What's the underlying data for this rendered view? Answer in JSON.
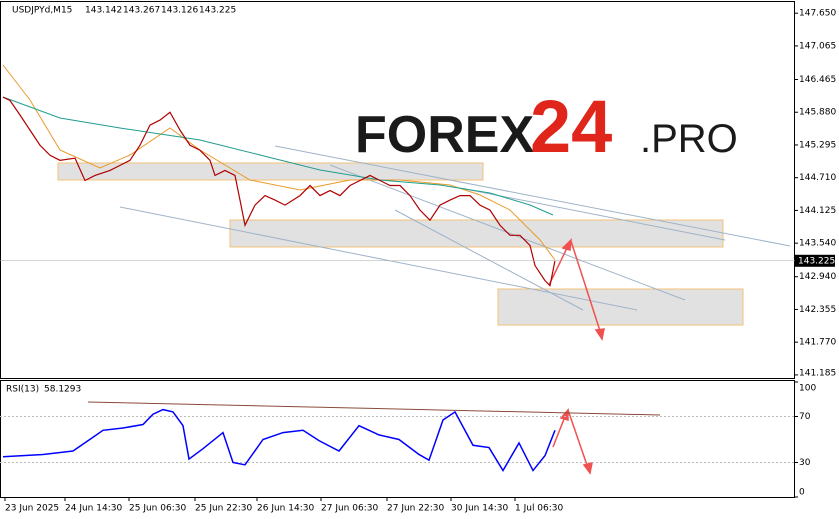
{
  "chart_data": [
    {
      "type": "line",
      "title": "USDJPYd,M15",
      "ohlc": [
        143.142,
        143.267,
        143.126,
        143.225
      ],
      "color": "#b00000",
      "x": [
        0,
        3.5,
        8.5,
        13.5,
        18.5,
        23.5,
        28.5,
        36,
        41,
        46,
        53.5,
        58.5,
        63.5,
        68.5,
        73.5,
        78.5,
        83.5,
        88.5,
        93.5,
        98.5,
        103.5,
        106,
        111,
        116,
        118.5,
        121,
        126,
        131,
        136,
        141,
        148.5,
        153.5,
        158.5,
        163.5,
        168.5,
        173.5,
        178.5,
        183.5,
        188.5,
        193.5,
        198.5,
        203.5,
        208.5,
        213.5,
        218.5,
        223.5,
        228.5,
        233.5,
        238.5,
        243.5,
        248.5,
        253.5,
        258.5,
        263.5,
        266,
        271,
        273.5,
        276
      ],
      "values": [
        146.15,
        146.09,
        145.83,
        145.56,
        145.29,
        145.11,
        145.02,
        145.06,
        144.66,
        144.75,
        144.84,
        144.93,
        145.02,
        145.29,
        145.65,
        145.74,
        145.88,
        145.56,
        145.29,
        145.2,
        145.02,
        144.75,
        144.84,
        144.75,
        144.31,
        143.86,
        144.22,
        144.39,
        144.31,
        144.22,
        144.39,
        144.57,
        144.39,
        144.48,
        144.39,
        144.57,
        144.66,
        144.75,
        144.66,
        144.57,
        144.57,
        144.39,
        144.13,
        143.95,
        144.22,
        144.31,
        144.39,
        144.39,
        144.22,
        144.13,
        143.86,
        143.68,
        143.68,
        143.5,
        143.14,
        142.87,
        142.78,
        143.23
      ],
      "last_price": 143.225,
      "xlim": [
        0,
        396
      ],
      "xticks": [
        {
          "value": 1,
          "label": "23 Jun 2025"
        },
        {
          "value": 31,
          "label": "24 Jun 14:30"
        },
        {
          "value": 63,
          "label": "25 Jun 06:30"
        },
        {
          "value": 96,
          "label": "25 Jun 22:30"
        },
        {
          "value": 127,
          "label": "26 Jun 14:30"
        },
        {
          "value": 159,
          "label": "27 Jun 06:30"
        },
        {
          "value": 192,
          "label": "27 Jun 22:30"
        },
        {
          "value": 224,
          "label": "30 Jun 14:30"
        },
        {
          "value": 256,
          "label": "1 Jul 06:30"
        }
      ],
      "ylim": [
        141.13,
        147.85
      ],
      "yticks": [
        {
          "value": 147.65,
          "label": "147.650"
        },
        147.065,
        146.465,
        {
          "value": 145.88,
          "label": "145.880"
        },
        145.295,
        {
          "value": 144.71,
          "label": "144.710"
        },
        144.125,
        {
          "value": 143.54,
          "label": "143.540"
        },
        {
          "value": 142.94,
          "label": "142.940"
        },
        142.355,
        {
          "value": 141.77,
          "label": "141.770"
        },
        141.185
      ]
    },
    {
      "type": "line",
      "title": "RSI(13)",
      "last_value": 58.1293,
      "color": "#0000ff",
      "x": [
        0,
        20,
        35,
        45,
        50,
        60,
        70,
        75,
        80,
        85,
        90,
        93,
        100,
        110,
        115,
        121,
        130,
        140,
        150,
        158,
        168,
        178,
        188,
        198,
        208,
        213,
        220,
        226,
        235,
        243,
        250,
        258,
        265,
        271,
        276
      ],
      "values": [
        35,
        37,
        40,
        52,
        58,
        60,
        63,
        72,
        76,
        74,
        62,
        33,
        42,
        56,
        30,
        28,
        50,
        56,
        58,
        49,
        40,
        62,
        54,
        50,
        37,
        32,
        67,
        74,
        45,
        43,
        23,
        47,
        23,
        36,
        58
      ],
      "ylim": [
        0,
        100
      ],
      "yticks": [
        0,
        30,
        70,
        100
      ]
    }
  ],
  "watermark": {
    "brand": "FOREX",
    "number": "24",
    "suffix": ".PRO"
  }
}
